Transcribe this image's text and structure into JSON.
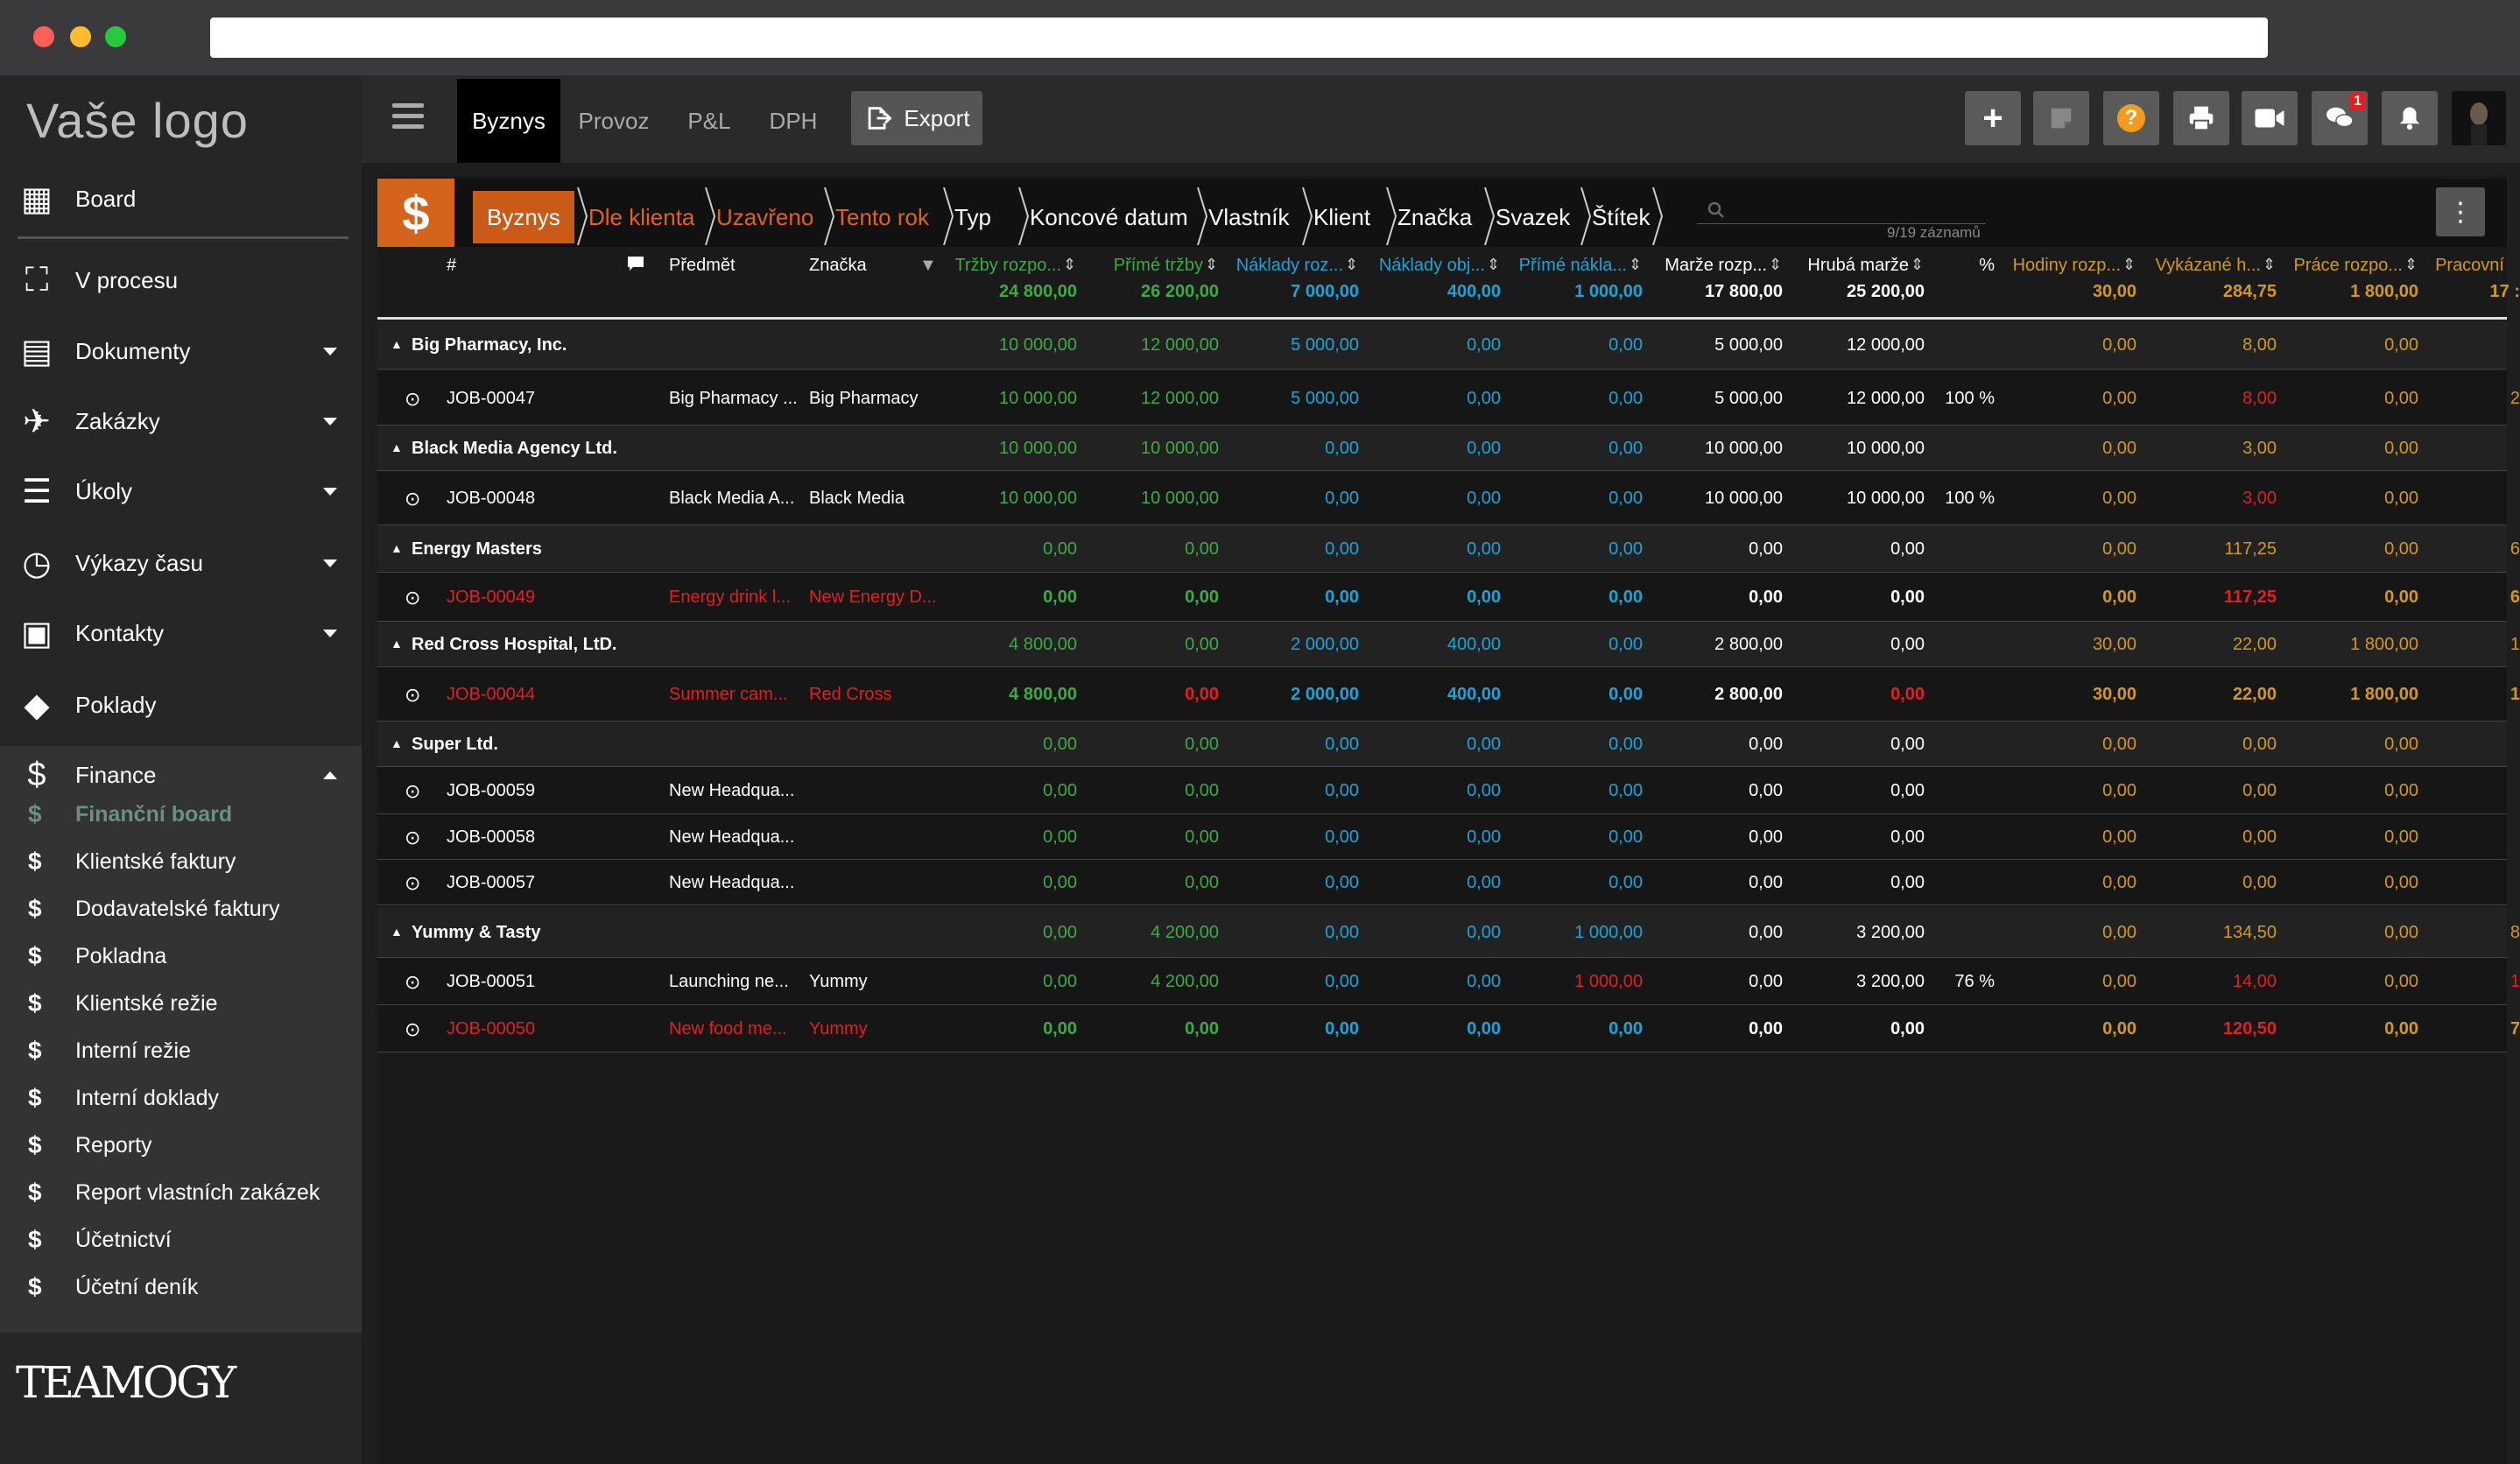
{
  "sidebar": {
    "logo": "Vaše logo",
    "items": [
      {
        "label": "Board",
        "icon": "grid-icon"
      },
      {
        "label": "V procesu",
        "icon": "flow-icon"
      },
      {
        "label": "Dokumenty",
        "icon": "document-icon"
      },
      {
        "label": "Zakázky",
        "icon": "rocket-icon"
      },
      {
        "label": "Úkoly",
        "icon": "tasks-icon"
      },
      {
        "label": "Výkazy času",
        "icon": "clock-icon"
      },
      {
        "label": "Kontakty",
        "icon": "contacts-icon"
      },
      {
        "label": "Poklady",
        "icon": "diamond-icon"
      },
      {
        "label": "Finance",
        "icon": "dollar-icon"
      }
    ],
    "finance_sub": [
      "Finanční board",
      "Klientské faktury",
      "Dodavatelské faktury",
      "Pokladna",
      "Klientské režie",
      "Interní režie",
      "Interní doklady",
      "Reporty",
      "Report vlastních zakázek",
      "Účetnictví",
      "Účetní deník"
    ],
    "brand": "TEAMOGY"
  },
  "topbar": {
    "tabs": [
      "Byznys",
      "Provoz",
      "P&L",
      "DPH"
    ],
    "export": "Export",
    "badge": "1"
  },
  "filters": {
    "active": "Byznys",
    "orange": [
      "Dle klienta",
      "Uzavřeno",
      "Tento rok"
    ],
    "white": [
      "Typ",
      "Koncové datum",
      "Vlastník",
      "Klient",
      "Značka",
      "Svazek",
      "Štítek"
    ],
    "records": "9/19 záznamů"
  },
  "table": {
    "headers": {
      "hash": "#",
      "subject": "Předmět",
      "brand": "Značka",
      "cols": [
        "Tržby rozpo...",
        "Přímé tržby",
        "Náklady roz...",
        "Náklady obj...",
        "Přímé nákla...",
        "Marže rozp...",
        "Hrubá marže",
        "%",
        "Hodiny rozp...",
        "Vykázané h...",
        "Práce rozpo...",
        "Pracovní"
      ]
    },
    "totals": [
      "24 800,00",
      "26 200,00",
      "7 000,00",
      "400,00",
      "1 000,00",
      "17 800,00",
      "25 200,00",
      "",
      "30,00",
      "284,75",
      "1 800,00",
      "17 :"
    ],
    "groups": [
      {
        "name": "Big Pharmacy, Inc.",
        "vals": [
          "10 000,00",
          "12 000,00",
          "5 000,00",
          "0,00",
          "0,00",
          "5 000,00",
          "12 000,00",
          "",
          "0,00",
          "8,00",
          "0,00",
          ""
        ],
        "jobs": [
          {
            "id": "JOB-00047",
            "subj": "Big Pharmacy ...",
            "brand": "Big Pharmacy",
            "red": false,
            "vals": [
              "10 000,00",
              "12 000,00",
              "5 000,00",
              "0,00",
              "0,00",
              "5 000,00",
              "12 000,00",
              "100 %",
              "0,00",
              "8,00",
              "0,00",
              "2"
            ],
            "redcols": [
              9
            ]
          }
        ]
      },
      {
        "name": "Black Media Agency Ltd.",
        "vals": [
          "10 000,00",
          "10 000,00",
          "0,00",
          "0,00",
          "0,00",
          "10 000,00",
          "10 000,00",
          "",
          "0,00",
          "3,00",
          "0,00",
          ""
        ],
        "jobs": [
          {
            "id": "JOB-00048",
            "subj": "Black Media A...",
            "brand": "Black Media",
            "red": false,
            "vals": [
              "10 000,00",
              "10 000,00",
              "0,00",
              "0,00",
              "0,00",
              "10 000,00",
              "10 000,00",
              "100 %",
              "0,00",
              "3,00",
              "0,00",
              ""
            ],
            "redcols": [
              9
            ]
          }
        ]
      },
      {
        "name": "Energy Masters",
        "vals": [
          "0,00",
          "0,00",
          "0,00",
          "0,00",
          "0,00",
          "0,00",
          "0,00",
          "",
          "0,00",
          "117,25",
          "0,00",
          "6"
        ],
        "jobs": [
          {
            "id": "JOB-00049",
            "subj": "Energy drink l...",
            "brand": "New Energy D...",
            "red": true,
            "vals": [
              "0,00",
              "0,00",
              "0,00",
              "0,00",
              "0,00",
              "0,00",
              "0,00",
              "",
              "0,00",
              "117,25",
              "0,00",
              "6"
            ],
            "redcols": [
              9
            ]
          }
        ]
      },
      {
        "name": "Red Cross Hospital, LtD.",
        "vals": [
          "4 800,00",
          "0,00",
          "2 000,00",
          "400,00",
          "0,00",
          "2 800,00",
          "0,00",
          "",
          "30,00",
          "22,00",
          "1 800,00",
          "1"
        ],
        "jobs": [
          {
            "id": "JOB-00044",
            "subj": "Summer cam...",
            "brand": "Red Cross",
            "red": true,
            "vals": [
              "4 800,00",
              "0,00",
              "2 000,00",
              "400,00",
              "0,00",
              "2 800,00",
              "0,00",
              "",
              "30,00",
              "22,00",
              "1 800,00",
              "1"
            ],
            "redcols": [
              1,
              6
            ]
          }
        ]
      },
      {
        "name": "Super Ltd.",
        "vals": [
          "0,00",
          "0,00",
          "0,00",
          "0,00",
          "0,00",
          "0,00",
          "0,00",
          "",
          "0,00",
          "0,00",
          "0,00",
          ""
        ],
        "jobs": [
          {
            "id": "JOB-00059",
            "subj": "New Headqua...",
            "brand": "",
            "red": false,
            "vals": [
              "0,00",
              "0,00",
              "0,00",
              "0,00",
              "0,00",
              "0,00",
              "0,00",
              "",
              "0,00",
              "0,00",
              "0,00",
              ""
            ],
            "redcols": []
          },
          {
            "id": "JOB-00058",
            "subj": "New Headqua...",
            "brand": "",
            "red": false,
            "vals": [
              "0,00",
              "0,00",
              "0,00",
              "0,00",
              "0,00",
              "0,00",
              "0,00",
              "",
              "0,00",
              "0,00",
              "0,00",
              ""
            ],
            "redcols": []
          },
          {
            "id": "JOB-00057",
            "subj": "New Headqua...",
            "brand": "",
            "red": false,
            "vals": [
              "0,00",
              "0,00",
              "0,00",
              "0,00",
              "0,00",
              "0,00",
              "0,00",
              "",
              "0,00",
              "0,00",
              "0,00",
              ""
            ],
            "redcols": []
          }
        ]
      },
      {
        "name": "Yummy & Tasty",
        "vals": [
          "0,00",
          "4 200,00",
          "0,00",
          "0,00",
          "1 000,00",
          "0,00",
          "3 200,00",
          "",
          "0,00",
          "134,50",
          "0,00",
          "8"
        ],
        "jobs": [
          {
            "id": "JOB-00051",
            "subj": "Launching ne...",
            "brand": "Yummy",
            "red": false,
            "vals": [
              "0,00",
              "4 200,00",
              "0,00",
              "0,00",
              "1 000,00",
              "0,00",
              "3 200,00",
              "76 %",
              "0,00",
              "14,00",
              "0,00",
              "1"
            ],
            "redcols": [
              4,
              9,
              11
            ]
          },
          {
            "id": "JOB-00050",
            "subj": "New food me...",
            "brand": "Yummy",
            "red": true,
            "vals": [
              "0,00",
              "0,00",
              "0,00",
              "0,00",
              "0,00",
              "0,00",
              "0,00",
              "",
              "0,00",
              "120,50",
              "0,00",
              "7"
            ],
            "redcols": [
              9
            ]
          }
        ]
      }
    ]
  }
}
